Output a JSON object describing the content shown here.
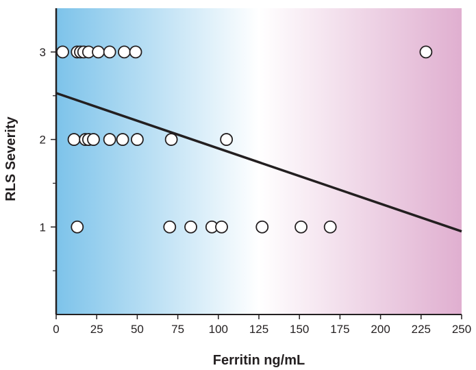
{
  "chart_data": {
    "type": "scatter",
    "title": "",
    "xlabel": "Ferritin ng/mL",
    "ylabel": "RLS Severity",
    "xlim": [
      0,
      250
    ],
    "ylim": [
      0,
      3.5
    ],
    "x_ticks": [
      0,
      25,
      50,
      75,
      100,
      125,
      150,
      175,
      200,
      225,
      250
    ],
    "y_ticks": [
      1,
      2,
      3
    ],
    "grid": false,
    "legend": "none",
    "background_gradient": [
      "#7dc3ea",
      "#ffffff",
      "#e0afd0"
    ],
    "marker_fill": "#ffffff",
    "marker_stroke": "#231f20",
    "line_color": "#231f20",
    "points": [
      {
        "x": 4,
        "y": 3
      },
      {
        "x": 13,
        "y": 3
      },
      {
        "x": 15,
        "y": 3
      },
      {
        "x": 17,
        "y": 3
      },
      {
        "x": 20,
        "y": 3
      },
      {
        "x": 26,
        "y": 3
      },
      {
        "x": 33,
        "y": 3
      },
      {
        "x": 42,
        "y": 3
      },
      {
        "x": 49,
        "y": 3
      },
      {
        "x": 228,
        "y": 3
      },
      {
        "x": 11,
        "y": 2
      },
      {
        "x": 18,
        "y": 2
      },
      {
        "x": 20,
        "y": 2
      },
      {
        "x": 23,
        "y": 2
      },
      {
        "x": 33,
        "y": 2
      },
      {
        "x": 41,
        "y": 2
      },
      {
        "x": 50,
        "y": 2
      },
      {
        "x": 71,
        "y": 2
      },
      {
        "x": 105,
        "y": 2
      },
      {
        "x": 13,
        "y": 1
      },
      {
        "x": 70,
        "y": 1
      },
      {
        "x": 83,
        "y": 1
      },
      {
        "x": 96,
        "y": 1
      },
      {
        "x": 102,
        "y": 1
      },
      {
        "x": 127,
        "y": 1
      },
      {
        "x": 151,
        "y": 1
      },
      {
        "x": 169,
        "y": 1
      }
    ],
    "trendline": {
      "x": [
        0,
        250
      ],
      "y": [
        2.53,
        0.95
      ]
    }
  }
}
